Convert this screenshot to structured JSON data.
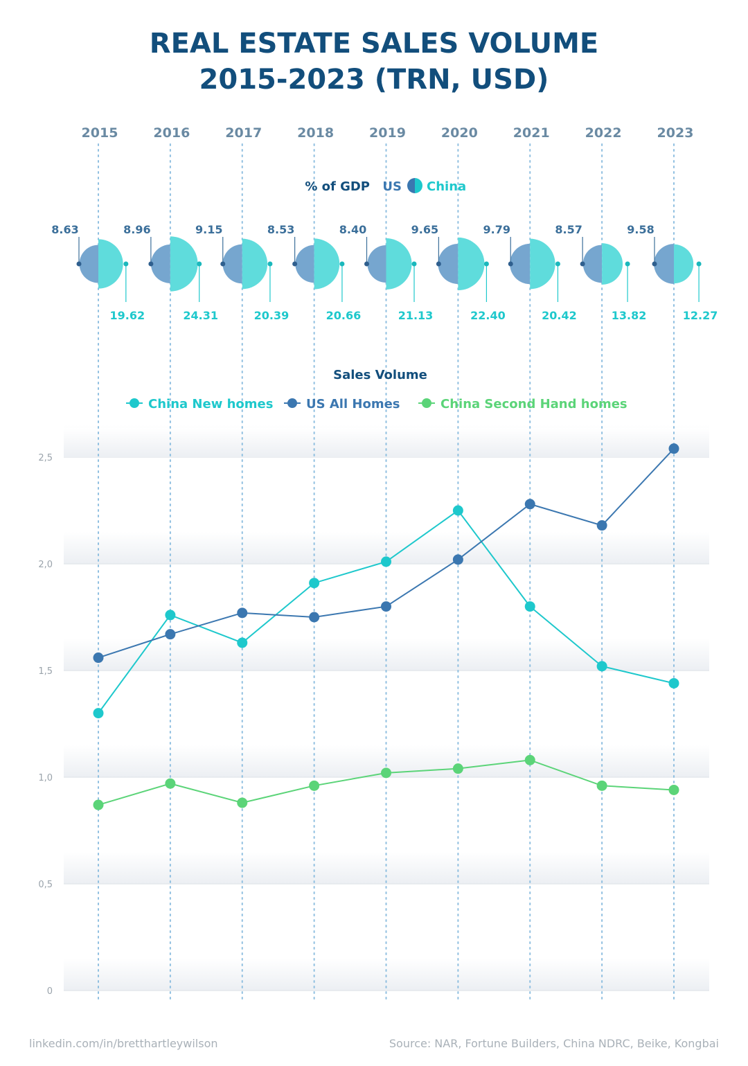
{
  "title_line1": "REAL ESTATE SALES VOLUME",
  "title_line2": "2015-2023 (TRN, USD)",
  "gdp_legend": {
    "label": "% of GDP",
    "us": "US",
    "china": "China"
  },
  "colors": {
    "us": "#3b77b0",
    "china_new": "#1ec8cc",
    "china_second": "#5bd478",
    "us_circle": "#76a6cf",
    "china_circle": "#5fdcdc",
    "title": "#124e7c"
  },
  "footer": {
    "left": "linkedin.com/in/bretthartleywilson",
    "right": "Source: NAR, Fortune Builders, China NDRC, Beike, Kongbai"
  },
  "chart_data": [
    {
      "type": "half-circle",
      "title": "% of GDP",
      "categories": [
        "2015",
        "2016",
        "2017",
        "2018",
        "2019",
        "2020",
        "2021",
        "2022",
        "2023"
      ],
      "series": [
        {
          "name": "US",
          "values": [
            "8.63",
            "8.96",
            "9.15",
            "8.53",
            "8.40",
            "9.65",
            "9.79",
            "8.57",
            "9.58"
          ]
        },
        {
          "name": "China",
          "values": [
            "19.62",
            "24.31",
            "20.39",
            "20.66",
            "21.13",
            "22.40",
            "20.42",
            "13.82",
            "12.27"
          ]
        }
      ]
    },
    {
      "type": "line",
      "title": "Sales Volume",
      "categories": [
        "2015",
        "2016",
        "2017",
        "2018",
        "2019",
        "2020",
        "2021",
        "2022",
        "2023"
      ],
      "series": [
        {
          "name": "China New homes",
          "values": [
            1.3,
            1.76,
            1.63,
            1.91,
            2.01,
            2.25,
            1.8,
            1.52,
            1.44
          ]
        },
        {
          "name": "US All Homes",
          "values": [
            1.56,
            1.67,
            1.77,
            1.75,
            1.8,
            2.02,
            2.28,
            2.18,
            2.54
          ]
        },
        {
          "name": "China Second Hand homes",
          "values": [
            0.87,
            0.97,
            0.88,
            0.96,
            1.02,
            1.04,
            1.08,
            0.96,
            0.94
          ]
        }
      ],
      "yticks": [
        "0",
        "0,5",
        "1,0",
        "1,5",
        "2,0",
        "2,5"
      ],
      "ylim": [
        0,
        2.5
      ]
    }
  ]
}
